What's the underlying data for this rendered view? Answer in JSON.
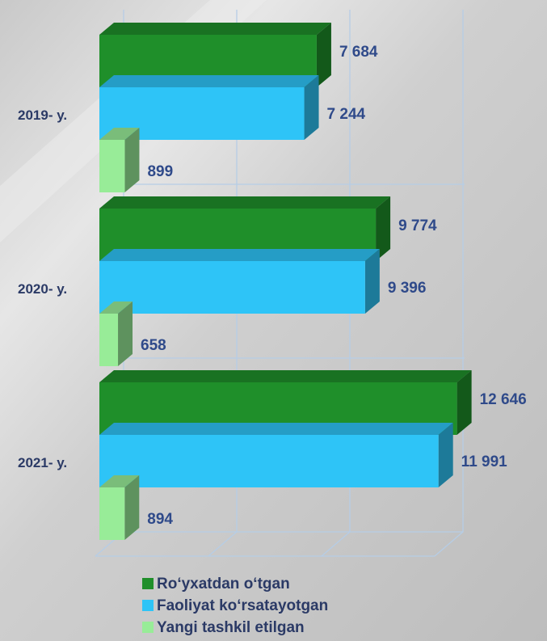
{
  "chart_data": {
    "type": "bar3d_horizontal",
    "categories": [
      "2019- y.",
      "2020- y.",
      "2021- y."
    ],
    "series": [
      {
        "name": "Ro‘yxatdan o‘tgan",
        "color": "#1f8f2a",
        "values": [
          7684,
          9774,
          12646
        ],
        "value_labels": [
          "7 684",
          "9 774",
          "12 646"
        ]
      },
      {
        "name": "Faoliyat ko‘rsatayotgan",
        "color": "#2ec4f7",
        "values": [
          7244,
          9396,
          11991
        ],
        "value_labels": [
          "7 244",
          "9 396",
          "11 991"
        ]
      },
      {
        "name": "Yangi tashkil etilgan",
        "color": "#98ec98",
        "values": [
          899,
          658,
          894
        ],
        "value_labels": [
          "899",
          "658",
          "894"
        ]
      }
    ],
    "xlim": [
      0,
      12000
    ],
    "xticks": [
      0,
      4000,
      8000,
      12000
    ],
    "grid": true
  }
}
